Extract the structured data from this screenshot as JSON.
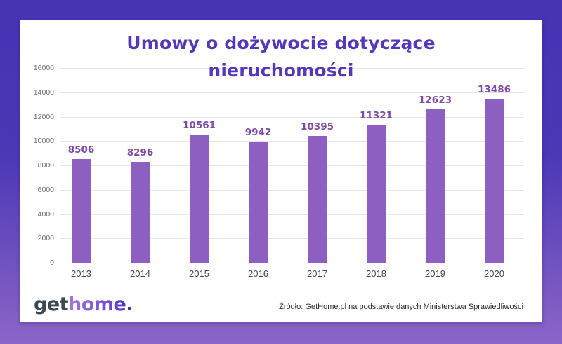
{
  "title": {
    "line1": "Umowy o dożywocie dotyczące",
    "line2": "nieruchomości"
  },
  "chart_data": {
    "type": "bar",
    "title": "Umowy o dożywocie dotyczące nieruchomości",
    "categories": [
      "2013",
      "2014",
      "2015",
      "2016",
      "2017",
      "2018",
      "2019",
      "2020"
    ],
    "values": [
      8506,
      8296,
      10561,
      9942,
      10395,
      11321,
      12623,
      13486
    ],
    "xlabel": "",
    "ylabel": "",
    "ylim": [
      0,
      16000
    ],
    "ytick_step": 2000,
    "grid": true,
    "legend": "none",
    "bar_color": "#8d5fc0",
    "value_label_color": "#7d4aa5",
    "gridline_color": "#e6e6e6",
    "ytick_color": "#6e6e6e",
    "xtick_color": "#454545"
  },
  "footer": {
    "logo_get": "get",
    "logo_home": "home.",
    "source": "Źródło: GetHome.pl na podstawie danych Ministerstwa Sprawiedliwości"
  },
  "colors": {
    "background_top": "#4533b3",
    "background_bottom": "#8c65c8",
    "card": "#ffffff",
    "title": "#5438ba",
    "logo_get": "#3d4853",
    "logo_home_gradient_start": "#a578da",
    "logo_home_gradient_end": "#4328ad",
    "source_text": "#2b2b2b"
  }
}
